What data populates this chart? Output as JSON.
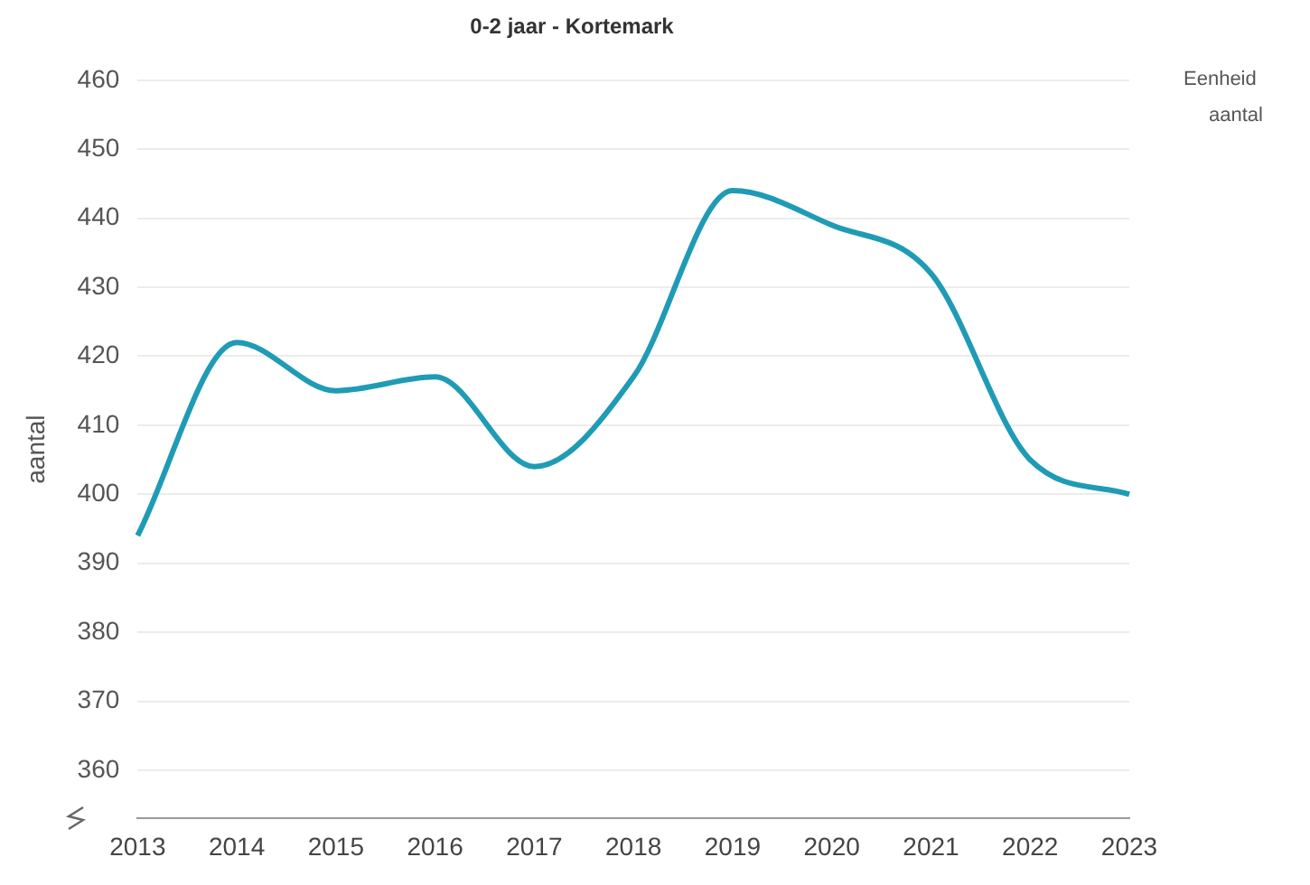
{
  "chart_data": {
    "type": "line",
    "title": "0-2 jaar - Kortemark",
    "ylabel": "aantal",
    "annotations": [
      "Eenheid",
      "aantal"
    ],
    "categories": [
      "2013",
      "2014",
      "2015",
      "2016",
      "2017",
      "2018",
      "2019",
      "2020",
      "2021",
      "2022",
      "2023"
    ],
    "series": [
      {
        "color": "#1f9bb5",
        "values": [
          394,
          422,
          415,
          417,
          404,
          417,
          444,
          439,
          432,
          405,
          400
        ]
      }
    ],
    "ylim": [
      353,
      460
    ],
    "yticks": [
      360,
      370,
      380,
      390,
      400,
      410,
      420,
      430,
      440,
      450,
      460
    ],
    "grid": "y",
    "legend": false,
    "marker": "none",
    "line_style": "solid"
  }
}
